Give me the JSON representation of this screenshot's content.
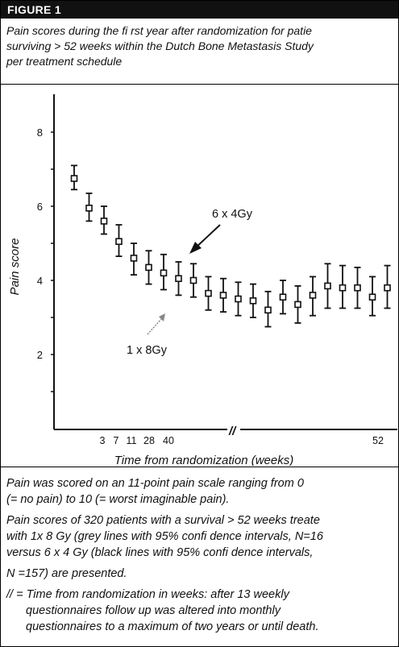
{
  "figure_label": "FIGURE 1",
  "caption_lines": [
    "Pain scores during the fi rst year after randomization for patie",
    "surviving > 52 weeks within the Dutch Bone Metastasis Study",
    "per treatment schedule"
  ],
  "chart_data": {
    "type": "scatter",
    "xlabel": "Time from randomization (weeks)",
    "ylabel": "Pain score",
    "ylim": [
      0,
      9
    ],
    "y_ticks": [
      2,
      4,
      6,
      8
    ],
    "x_tick_labels": [
      "3",
      "7",
      "11",
      "28",
      "40",
      "52"
    ],
    "axis_break_label": "//",
    "annotations": {
      "black_series_label": "6 x 4Gy",
      "grey_series_label": "1 x 8Gy"
    },
    "series": [
      {
        "name": "6 x 4Gy",
        "color": "#111111",
        "points": [
          {
            "x": 1,
            "y": 6.75,
            "lo": 6.45,
            "hi": 7.1
          },
          {
            "x": 2,
            "y": 5.95,
            "lo": 5.6,
            "hi": 6.35
          },
          {
            "x": 3,
            "y": 5.6,
            "lo": 5.25,
            "hi": 6.0
          },
          {
            "x": 4,
            "y": 5.05,
            "lo": 4.65,
            "hi": 5.5
          },
          {
            "x": 5,
            "y": 4.6,
            "lo": 4.15,
            "hi": 5.0
          },
          {
            "x": 6,
            "y": 4.35,
            "lo": 3.9,
            "hi": 4.8
          },
          {
            "x": 7,
            "y": 4.2,
            "lo": 3.75,
            "hi": 4.7
          },
          {
            "x": 8,
            "y": 4.05,
            "lo": 3.6,
            "hi": 4.5
          },
          {
            "x": 9,
            "y": 4.0,
            "lo": 3.55,
            "hi": 4.45
          },
          {
            "x": 10,
            "y": 3.65,
            "lo": 3.2,
            "hi": 4.1
          },
          {
            "x": 11,
            "y": 3.6,
            "lo": 3.15,
            "hi": 4.05
          },
          {
            "x": 12,
            "y": 3.5,
            "lo": 3.05,
            "hi": 3.95
          },
          {
            "x": 13,
            "y": 3.45,
            "lo": 3.0,
            "hi": 3.9
          },
          {
            "x": 14,
            "y": 3.2,
            "lo": 2.75,
            "hi": 3.7
          },
          {
            "x": 15,
            "y": 3.55,
            "lo": 3.1,
            "hi": 4.0
          },
          {
            "x": 16,
            "y": 3.35,
            "lo": 2.85,
            "hi": 3.85
          },
          {
            "x": 17,
            "y": 3.6,
            "lo": 3.05,
            "hi": 4.1
          },
          {
            "x": 18,
            "y": 3.85,
            "lo": 3.25,
            "hi": 4.45
          },
          {
            "x": 19,
            "y": 3.8,
            "lo": 3.25,
            "hi": 4.4
          },
          {
            "x": 20,
            "y": 3.8,
            "lo": 3.25,
            "hi": 4.35
          },
          {
            "x": 21,
            "y": 3.55,
            "lo": 3.05,
            "hi": 4.1
          },
          {
            "x": 22,
            "y": 3.8,
            "lo": 3.25,
            "hi": 4.4
          }
        ]
      }
    ]
  },
  "notes": {
    "para1": [
      "Pain was scored on an 11-point pain scale ranging from 0",
      "(= no pain) to 10 (= worst imaginable pain)."
    ],
    "para2": [
      "Pain scores of 320 patients with a survival > 52 weeks treate",
      "with 1x 8 Gy (grey lines with 95% confi dence intervals, N=16",
      "versus 6 x 4 Gy (black lines with 95% confi dence intervals,"
    ],
    "para3": "N =157) are presented.",
    "para4": [
      "// =   Time from randomization in weeks: after 13 weekly",
      "questionnaires follow up was altered into monthly",
      "questionnaires to a maximum of two years or until death."
    ]
  }
}
